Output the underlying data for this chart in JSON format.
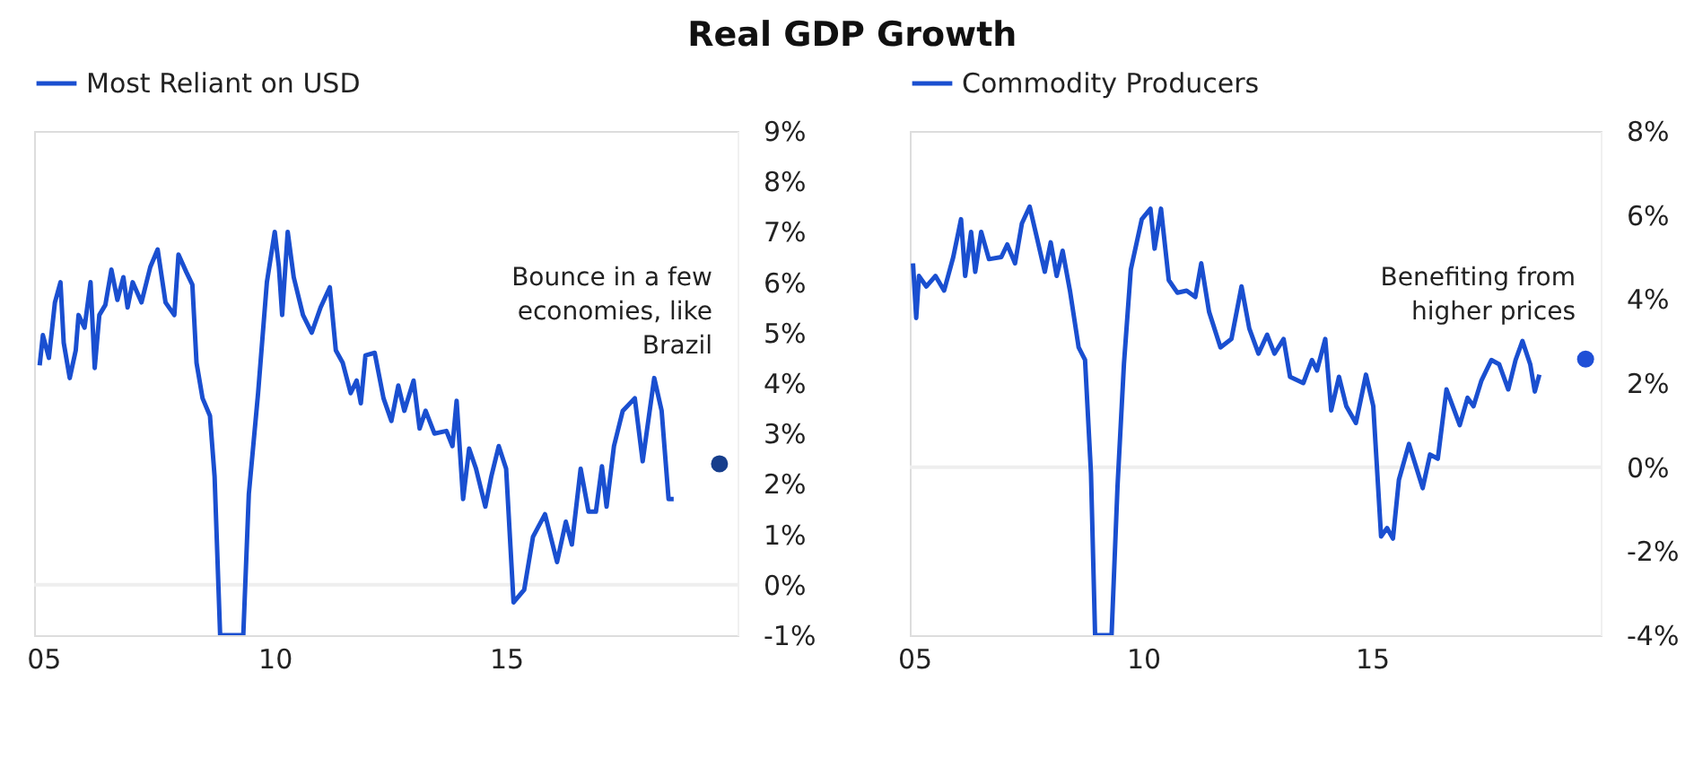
{
  "chart_data": [
    {
      "type": "line",
      "title": "Real GDP Growth",
      "xlim": [
        2004.8,
        2020
      ],
      "xticks": [
        {
          "value": 2005,
          "label": "05"
        },
        {
          "value": 2010,
          "label": "10"
        },
        {
          "value": 2015,
          "label": "15"
        }
      ],
      "ylim": [
        -1,
        9
      ],
      "yticks": [
        {
          "value": -1,
          "label": "-1%"
        },
        {
          "value": 0,
          "label": "0%"
        },
        {
          "value": 1,
          "label": "1%"
        },
        {
          "value": 2,
          "label": "2%"
        },
        {
          "value": 3,
          "label": "3%"
        },
        {
          "value": 4,
          "label": "4%"
        },
        {
          "value": 5,
          "label": "5%"
        },
        {
          "value": 6,
          "label": "6%"
        },
        {
          "value": 7,
          "label": "7%"
        },
        {
          "value": 8,
          "label": "8%"
        },
        {
          "value": 9,
          "label": "9%"
        }
      ],
      "grid": false,
      "legend": "top",
      "annotations": [
        "Bounce in a few economies, like Brazil"
      ],
      "ref_lines": [
        {
          "axis": "y",
          "value": 0,
          "color": "#eeeeee"
        }
      ],
      "series": [
        {
          "name": "Most Reliant on USD",
          "type": "line",
          "color": "#1a4fd0",
          "x": [
            2004.92,
            2004.99,
            2005.12,
            2005.25,
            2005.37,
            2005.44,
            2005.57,
            2005.7,
            2005.76,
            2005.89,
            2006.02,
            2006.11,
            2006.21,
            2006.34,
            2006.47,
            2006.6,
            2006.73,
            2006.82,
            2006.93,
            2007.12,
            2007.31,
            2007.47,
            2007.64,
            2007.83,
            2007.92,
            2008.09,
            2008.22,
            2008.31,
            2008.44,
            2008.6,
            2008.7,
            2008.82,
            2009.32,
            2009.44,
            2009.64,
            2009.83,
            2010.0,
            2010.09,
            2010.16,
            2010.28,
            2010.41,
            2010.61,
            2010.8,
            2010.99,
            2011.19,
            2011.32,
            2011.47,
            2011.64,
            2011.77,
            2011.86,
            2011.96,
            2012.16,
            2012.35,
            2012.52,
            2012.67,
            2012.8,
            2013.0,
            2013.13,
            2013.26,
            2013.45,
            2013.71,
            2013.84,
            2013.93,
            2014.07,
            2014.2,
            2014.35,
            2014.55,
            2014.68,
            2014.84,
            2015.0,
            2015.16,
            2015.39,
            2015.58,
            2015.84,
            2016.1,
            2016.29,
            2016.42,
            2016.61,
            2016.78,
            2016.94,
            2017.07,
            2017.17,
            2017.33,
            2017.52,
            2017.78,
            2017.95,
            2018.2,
            2018.36,
            2018.51,
            2018.62
          ],
          "values": [
            4.35,
            4.95,
            4.5,
            5.6,
            6.0,
            4.8,
            4.1,
            4.65,
            5.35,
            5.1,
            6.0,
            4.3,
            5.35,
            5.55,
            6.25,
            5.65,
            6.1,
            5.5,
            6.0,
            5.6,
            6.3,
            6.65,
            5.6,
            5.35,
            6.55,
            6.2,
            5.95,
            4.4,
            3.7,
            3.35,
            2.15,
            -1.0,
            -1.0,
            1.8,
            3.8,
            6.0,
            7.0,
            6.3,
            5.35,
            7.0,
            6.1,
            5.35,
            5.0,
            5.5,
            5.9,
            4.65,
            4.4,
            3.8,
            4.05,
            3.6,
            4.55,
            4.6,
            3.7,
            3.25,
            3.95,
            3.45,
            4.05,
            3.1,
            3.45,
            3.0,
            3.05,
            2.75,
            3.65,
            1.7,
            2.7,
            2.3,
            1.55,
            2.15,
            2.75,
            2.3,
            -0.35,
            -0.1,
            0.95,
            1.4,
            0.45,
            1.25,
            0.8,
            2.3,
            1.45,
            1.45,
            2.35,
            1.55,
            2.75,
            3.45,
            3.7,
            2.45,
            4.1,
            3.45,
            1.7,
            1.7
          ]
        },
        {
          "type": "scatter",
          "marker": "circle",
          "color": "#173e8c",
          "x": [
            2019.61
          ],
          "values": [
            2.4
          ]
        }
      ]
    },
    {
      "type": "line",
      "xlim": [
        2004.9,
        2020
      ],
      "xticks": [
        {
          "value": 2005,
          "label": "05"
        },
        {
          "value": 2010,
          "label": "10"
        },
        {
          "value": 2015,
          "label": "15"
        }
      ],
      "ylim": [
        -4,
        8
      ],
      "yticks": [
        {
          "value": -4,
          "label": "-4%"
        },
        {
          "value": -2,
          "label": "-2%"
        },
        {
          "value": 0,
          "label": "0%"
        },
        {
          "value": 2,
          "label": "2%"
        },
        {
          "value": 4,
          "label": "4%"
        },
        {
          "value": 6,
          "label": "6%"
        },
        {
          "value": 8,
          "label": "8%"
        }
      ],
      "grid": false,
      "legend": "top",
      "annotations": [
        "Benefiting from higher prices"
      ],
      "ref_lines": [
        {
          "axis": "y",
          "value": 0,
          "color": "#eeeeee"
        }
      ],
      "series": [
        {
          "name": "Commodity Producers",
          "type": "line",
          "color": "#1a4fd0",
          "x": [
            2004.97,
            2005.04,
            2005.1,
            2005.26,
            2005.46,
            2005.65,
            2005.85,
            2006.02,
            2006.11,
            2006.24,
            2006.33,
            2006.46,
            2006.63,
            2006.9,
            2007.03,
            2007.2,
            2007.35,
            2007.52,
            2007.68,
            2007.85,
            2007.98,
            2008.11,
            2008.24,
            2008.4,
            2008.59,
            2008.73,
            2008.86,
            2008.95,
            2009.31,
            2009.44,
            2009.58,
            2009.73,
            2009.97,
            2010.16,
            2010.25,
            2010.39,
            2010.56,
            2010.75,
            2010.95,
            2011.14,
            2011.27,
            2011.44,
            2011.69,
            2011.93,
            2012.15,
            2012.32,
            2012.52,
            2012.71,
            2012.87,
            2013.07,
            2013.21,
            2013.5,
            2013.69,
            2013.8,
            2013.98,
            2014.11,
            2014.28,
            2014.44,
            2014.65,
            2014.87,
            2015.03,
            2015.2,
            2015.33,
            2015.46,
            2015.59,
            2015.81,
            2016.11,
            2016.27,
            2016.44,
            2016.63,
            2016.92,
            2017.09,
            2017.22,
            2017.39,
            2017.61,
            2017.78,
            2017.98,
            2018.14,
            2018.29,
            2018.46,
            2018.56,
            2018.66
          ],
          "values": [
            4.85,
            3.55,
            4.55,
            4.3,
            4.55,
            4.2,
            5.0,
            5.9,
            4.55,
            5.6,
            4.65,
            5.6,
            4.95,
            5.0,
            5.3,
            4.85,
            5.8,
            6.2,
            5.45,
            4.65,
            5.35,
            4.55,
            5.15,
            4.2,
            2.85,
            2.55,
            -0.15,
            -4.0,
            -4.0,
            -0.45,
            2.45,
            4.7,
            5.9,
            6.15,
            5.2,
            6.15,
            4.45,
            4.15,
            4.2,
            4.05,
            4.85,
            3.7,
            2.85,
            3.05,
            4.3,
            3.3,
            2.7,
            3.15,
            2.7,
            3.05,
            2.15,
            2.0,
            2.55,
            2.3,
            3.05,
            1.35,
            2.15,
            1.45,
            1.05,
            2.2,
            1.45,
            -1.65,
            -1.45,
            -1.7,
            -0.3,
            0.55,
            -0.5,
            0.3,
            0.2,
            1.85,
            1.0,
            1.65,
            1.45,
            2.05,
            2.55,
            2.45,
            1.85,
            2.55,
            3.0,
            2.45,
            1.8,
            2.2
          ]
        },
        {
          "type": "scatter",
          "marker": "circle",
          "color": "#1f4fd6",
          "x": [
            2019.67
          ],
          "values": [
            2.57
          ]
        }
      ]
    }
  ]
}
